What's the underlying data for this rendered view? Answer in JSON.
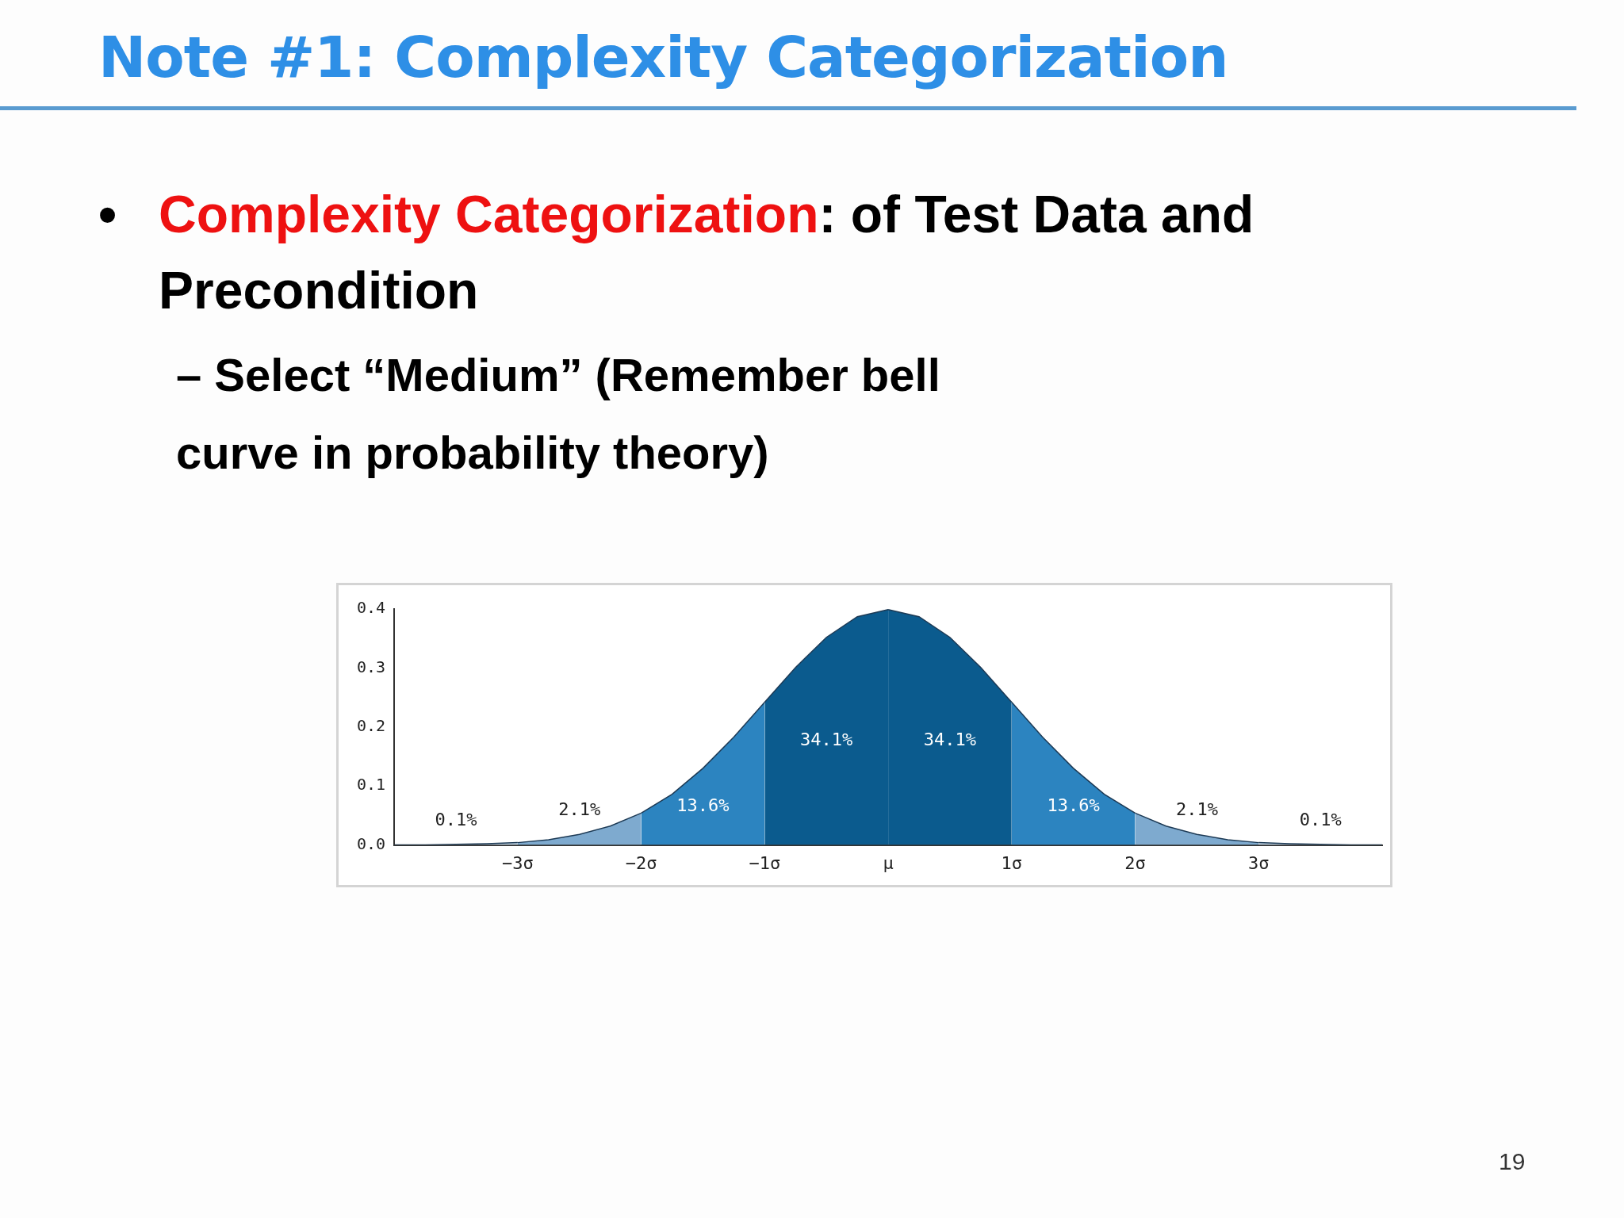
{
  "chart_data": {
    "type": "area",
    "title": "Note #1: Complexity Categorization",
    "annotations": [
      "•",
      "Complexity Categorization",
      ": of Test Data and Precondition",
      "– Select “Medium” (Remember bell curve in probability theory)",
      "19",
      "0.1%",
      "2.1%",
      "13.6%",
      "34.1%",
      "34.1%",
      "13.6%",
      "2.1%",
      "0.1%"
    ],
    "xlim": [
      -4,
      4
    ],
    "xticks": [
      {
        "value": -3,
        "label": "−3σ"
      },
      {
        "value": -2,
        "label": "−2σ"
      },
      {
        "value": -1,
        "label": "−1σ"
      },
      {
        "value": 0,
        "label": "μ"
      },
      {
        "value": 1,
        "label": "1σ"
      },
      {
        "value": 2,
        "label": "2σ"
      },
      {
        "value": 3,
        "label": "3σ"
      }
    ],
    "ylim": [
      0,
      0.4
    ],
    "yticks": [
      {
        "value": 0,
        "label": "0.0"
      },
      0.1,
      0.2,
      0.3,
      0.4
    ],
    "legend": false,
    "series": [
      {
        "color": "#c4d8e8",
        "x": [
          -4,
          -3.75,
          -3.5,
          -3.25,
          -3
        ],
        "values": [
          0,
          0,
          0.001,
          0.002,
          0.004
        ]
      },
      {
        "color": "#7eaacf",
        "x": [
          -3,
          -2.75,
          -2.5,
          -2.25,
          -2
        ],
        "values": [
          0.004,
          0.009,
          0.018,
          0.032,
          0.054
        ]
      },
      {
        "color": "#2c84c0",
        "x": [
          -2,
          -1.75,
          -1.5,
          -1.25,
          -1
        ],
        "values": [
          0.054,
          0.086,
          0.13,
          0.183,
          0.242
        ]
      },
      {
        "color": "#0b5b8e",
        "x": [
          -1,
          -0.75,
          -0.5,
          -0.25,
          0
        ],
        "values": [
          0.242,
          0.301,
          0.352,
          0.387,
          0.399
        ]
      },
      {
        "color": "#0b5b8e",
        "x": [
          0,
          0.25,
          0.5,
          0.75,
          1
        ],
        "values": [
          0.399,
          0.387,
          0.352,
          0.301,
          0.242
        ]
      },
      {
        "color": "#2c84c0",
        "x": [
          1,
          1.25,
          1.5,
          1.75,
          2
        ],
        "values": [
          0.242,
          0.183,
          0.13,
          0.086,
          0.054
        ]
      },
      {
        "color": "#7eaacf",
        "x": [
          2,
          2.25,
          2.5,
          2.75,
          3
        ],
        "values": [
          0.054,
          0.032,
          0.018,
          0.009,
          0.004
        ]
      },
      {
        "color": "#c4d8e8",
        "x": [
          3,
          3.25,
          3.5,
          3.75,
          4
        ],
        "values": [
          0.004,
          0.002,
          0.001,
          0,
          0
        ]
      }
    ]
  }
}
